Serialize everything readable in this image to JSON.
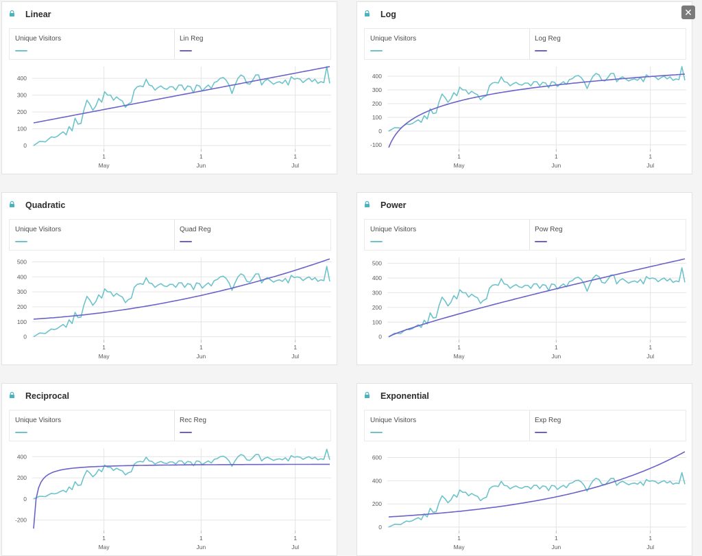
{
  "colors": {
    "series": "#6cc3cb",
    "regression": "#6a62c8",
    "grid": "#e4e4e4",
    "text": "#5a5a5a",
    "lock": "#4bb3be"
  },
  "icons": {
    "lock": "lock-icon",
    "close": "close-icon"
  },
  "close_glyph": "✕",
  "visitors": [
    0,
    12,
    25,
    24,
    22,
    38,
    52,
    48,
    55,
    70,
    82,
    64,
    113,
    88,
    163,
    128,
    132,
    212,
    270,
    245,
    210,
    235,
    280,
    258,
    320,
    300,
    300,
    270,
    290,
    275,
    265,
    228,
    248,
    258,
    330,
    350,
    355,
    350,
    395,
    360,
    355,
    330,
    345,
    355,
    340,
    335,
    350,
    350,
    330,
    360,
    360,
    330,
    355,
    350,
    315,
    360,
    355,
    325,
    345,
    360,
    340,
    375,
    382,
    400,
    405,
    390,
    360,
    310,
    360,
    400,
    420,
    410,
    370,
    365,
    390,
    420,
    420,
    360,
    385,
    395,
    380,
    365,
    375,
    380,
    370,
    390,
    360,
    410,
    395,
    400,
    395,
    375,
    390,
    400,
    380,
    395,
    370,
    380,
    375,
    470,
    370
  ],
  "panels": [
    {
      "title": "Linear",
      "legend_series": "Unique Visitors",
      "legend_reg": "Lin Reg",
      "chart_data": {
        "type": "line",
        "regression": "linear",
        "series": [
          {
            "name": "Unique Visitors"
          },
          {
            "name": "Lin Reg"
          }
        ],
        "y_ticks": [
          0,
          100,
          200,
          300,
          400
        ],
        "x_ticks": [
          {
            "day": "1",
            "month": "May"
          },
          {
            "day": "1",
            "month": "Jun"
          },
          {
            "day": "1",
            "month": "Jul"
          }
        ],
        "reg_start": 135,
        "reg_end": 470,
        "ylim": [
          -20,
          470
        ]
      }
    },
    {
      "title": "Log",
      "legend_series": "Unique Visitors",
      "legend_reg": "Log Reg",
      "chart_data": {
        "type": "line",
        "regression": "log",
        "series": [
          {
            "name": "Unique Visitors"
          },
          {
            "name": "Log Reg"
          }
        ],
        "y_ticks": [
          -100,
          0,
          100,
          200,
          300,
          400
        ],
        "x_ticks": [
          {
            "day": "1",
            "month": "May"
          },
          {
            "day": "1",
            "month": "Jun"
          },
          {
            "day": "1",
            "month": "Jul"
          }
        ],
        "reg_start": -120,
        "reg_end": 415,
        "ylim": [
          -130,
          470
        ]
      }
    },
    {
      "title": "Quadratic",
      "legend_series": "Unique Visitors",
      "legend_reg": "Quad Reg",
      "chart_data": {
        "type": "line",
        "regression": "quadratic",
        "series": [
          {
            "name": "Unique Visitors"
          },
          {
            "name": "Quad Reg"
          }
        ],
        "y_ticks": [
          0,
          100,
          200,
          300,
          400,
          500
        ],
        "x_ticks": [
          {
            "day": "1",
            "month": "May"
          },
          {
            "day": "1",
            "month": "Jun"
          },
          {
            "day": "1",
            "month": "Jul"
          }
        ],
        "reg_start": 118,
        "reg_end": 520,
        "ylim": [
          -20,
          530
        ]
      }
    },
    {
      "title": "Power",
      "legend_series": "Unique Visitors",
      "legend_reg": "Pow Reg",
      "chart_data": {
        "type": "line",
        "regression": "power",
        "series": [
          {
            "name": "Unique Visitors"
          },
          {
            "name": "Pow Reg"
          }
        ],
        "y_ticks": [
          0,
          100,
          200,
          300,
          400,
          500
        ],
        "x_ticks": [
          {
            "day": "1",
            "month": "May"
          },
          {
            "day": "1",
            "month": "Jun"
          },
          {
            "day": "1",
            "month": "Jul"
          }
        ],
        "reg_start": 0,
        "reg_end": 530,
        "ylim": [
          -20,
          540
        ]
      }
    },
    {
      "title": "Reciprocal",
      "legend_series": "Unique Visitors",
      "legend_reg": "Rec Reg",
      "chart_data": {
        "type": "line",
        "regression": "reciprocal",
        "series": [
          {
            "name": "Unique Visitors"
          },
          {
            "name": "Rec Reg"
          }
        ],
        "y_ticks": [
          -200,
          0,
          200,
          400
        ],
        "x_ticks": [
          {
            "day": "1",
            "month": "May"
          },
          {
            "day": "1",
            "month": "Jun"
          },
          {
            "day": "1",
            "month": "Jul"
          }
        ],
        "reg_start": -280,
        "reg_end": 328,
        "ylim": [
          -300,
          480
        ]
      }
    },
    {
      "title": "Exponential",
      "legend_series": "Unique Visitors",
      "legend_reg": "Exp Reg",
      "chart_data": {
        "type": "line",
        "regression": "exponential",
        "series": [
          {
            "name": "Unique Visitors"
          },
          {
            "name": "Exp Reg"
          }
        ],
        "y_ticks": [
          0,
          200,
          400,
          600
        ],
        "x_ticks": [
          {
            "day": "1",
            "month": "May"
          },
          {
            "day": "1",
            "month": "Jun"
          },
          {
            "day": "1",
            "month": "Jul"
          }
        ],
        "reg_start": 88,
        "reg_end": 650,
        "ylim": [
          -30,
          680
        ]
      }
    }
  ]
}
